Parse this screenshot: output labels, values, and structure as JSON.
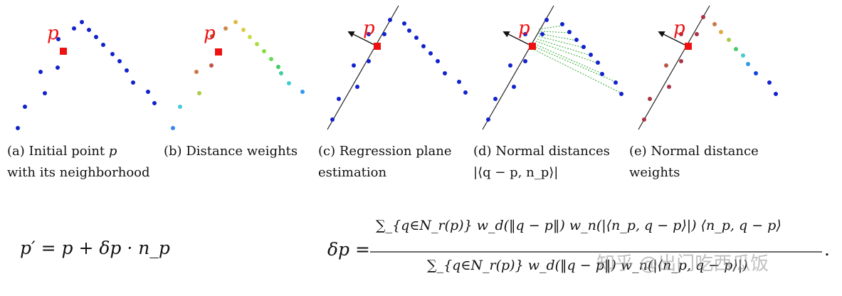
{
  "panels": [
    {
      "id": "a",
      "point_label": "p",
      "caption_line1": [
        "(a)",
        "Initial",
        "point",
        "p"
      ],
      "caption_line2": "with its neighborhood"
    },
    {
      "id": "b",
      "point_label": "p",
      "caption_line1": [
        "(b)",
        "Distance weights"
      ],
      "caption_line2": ""
    },
    {
      "id": "c",
      "point_label": "p",
      "caption_line1": [
        "(c)",
        "Regression",
        "plane"
      ],
      "caption_line2": "estimation"
    },
    {
      "id": "d",
      "point_label": "p",
      "caption_line1": [
        "(d)",
        "Normal distances"
      ],
      "caption_line2": "|⟨q − p, n_p⟩|"
    },
    {
      "id": "e",
      "point_label": "p",
      "caption_line1": [
        "(e)",
        "Normal",
        "distance"
      ],
      "caption_line2": "weights"
    }
  ],
  "equations": {
    "update_lhs": "p′ = p + δp · n_p",
    "delta_lhs": "δp =",
    "numerator": "∑_{q∈N_r(p)} w_d(‖q − p‖) w_n(|⟨n_p, q − p⟩|) ⟨n_p, q − p⟩",
    "denominator": "∑_{q∈N_r(p)} w_d(‖q − p‖) w_n(|⟨n_p, q − p⟩|)",
    "trailing": "."
  },
  "watermark": "知乎 @出门吃西瓜饭",
  "colors": {
    "point": "#1122cc",
    "center_point": "#ee1111",
    "label": "#ee1111",
    "line": "#222222",
    "normal_arrow": "#111111",
    "distance_lines": "#33aa33"
  }
}
